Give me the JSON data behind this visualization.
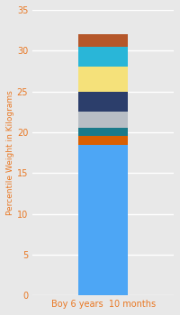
{
  "category": "Boy 6 years  10 months",
  "segments": [
    {
      "value": 18.5,
      "color": "#4DA6F5"
    },
    {
      "value": 1.0,
      "color": "#D95F02"
    },
    {
      "value": 1.0,
      "color": "#1A7A8A"
    },
    {
      "value": 2.0,
      "color": "#B8BEC5"
    },
    {
      "value": 2.5,
      "color": "#2C3E6B"
    },
    {
      "value": 3.0,
      "color": "#F5E17A"
    },
    {
      "value": 2.5,
      "color": "#29B6D8"
    },
    {
      "value": 1.5,
      "color": "#B5572A"
    }
  ],
  "ylabel": "Percentile Weight in Kilograms",
  "ylim": [
    0,
    35
  ],
  "yticks": [
    0,
    5,
    10,
    15,
    20,
    25,
    30,
    35
  ],
  "background_color": "#E8E8E8",
  "bar_width": 0.35,
  "grid_color": "#FFFFFF",
  "tick_color": "#E87722",
  "label_color": "#E87722",
  "ylabel_fontsize": 6.5,
  "xlabel_fontsize": 7,
  "ytick_fontsize": 7
}
